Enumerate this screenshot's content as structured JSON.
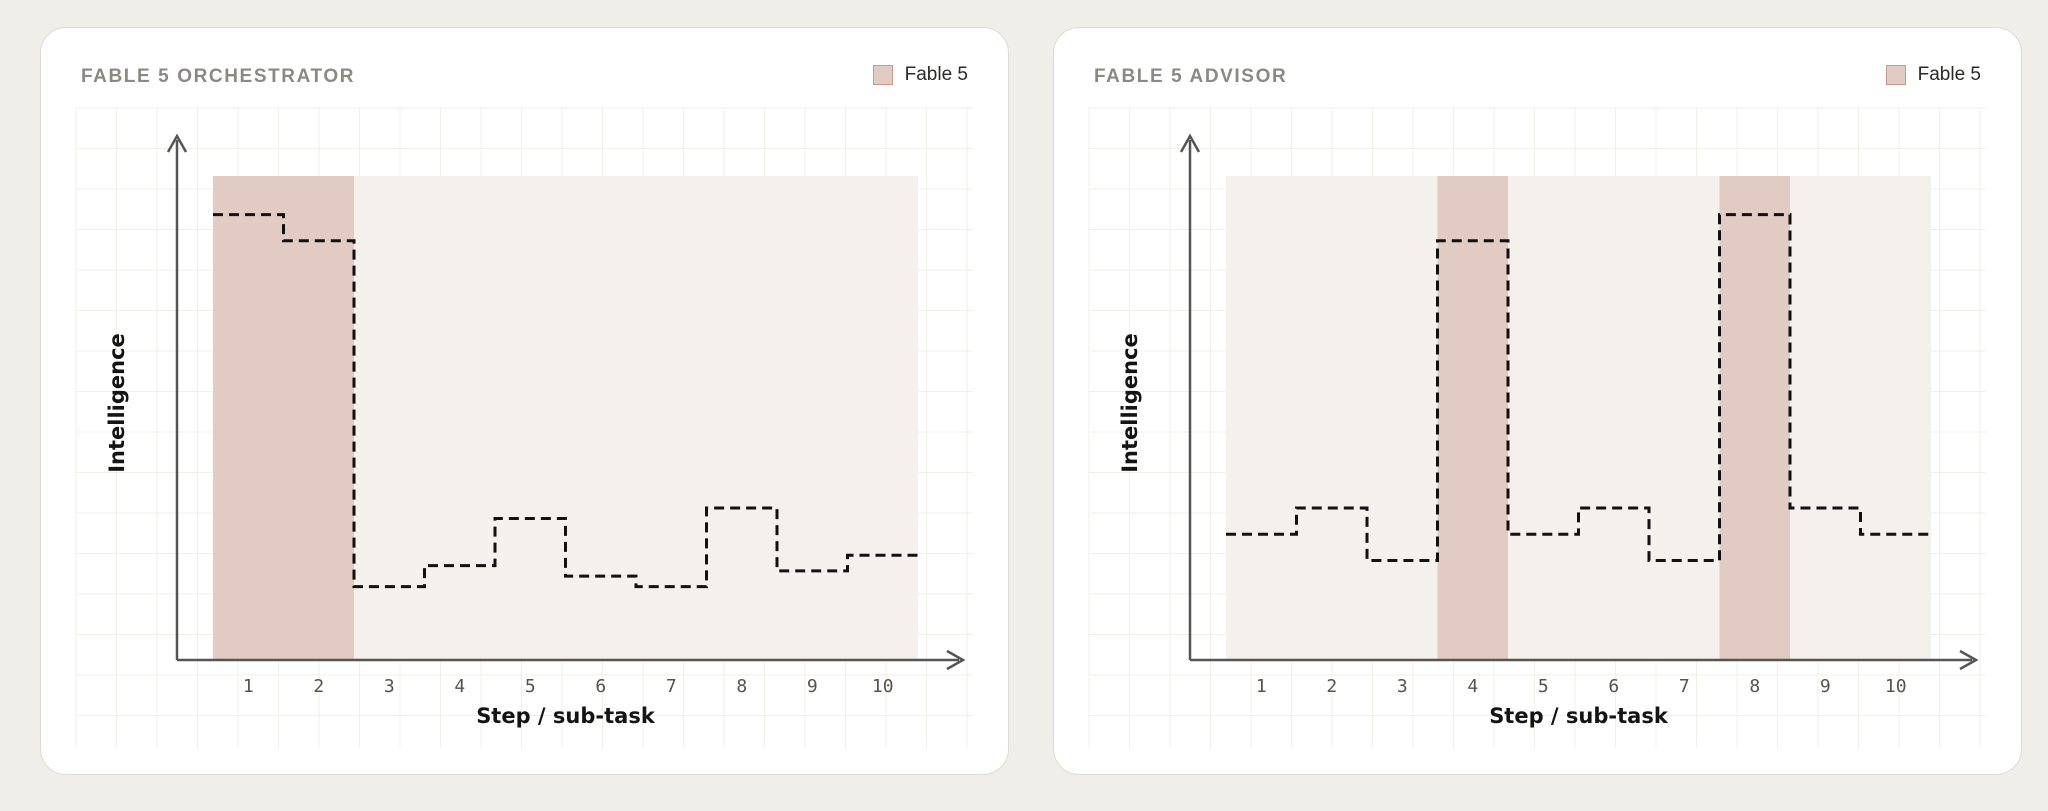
{
  "colors": {
    "background": "#efeee8",
    "card": "#ffffff",
    "highlight": "#e1cbc2",
    "base_band": "#f4f1ec",
    "grid": "#f0efea",
    "axis": "#555555",
    "line": "#111111"
  },
  "chart_data": [
    {
      "type": "line",
      "style": "step, dashed",
      "title": "FABLE 5 ORCHESTRATOR",
      "legend": {
        "label": "Fable 5",
        "position": "top-right"
      },
      "xlabel": "Step / sub-task",
      "ylabel": "Intelligence",
      "grid": true,
      "categories": [
        "1",
        "2",
        "3",
        "4",
        "5",
        "6",
        "7",
        "8",
        "9",
        "10"
      ],
      "ylim": [
        0,
        10
      ],
      "values": [
        8.5,
        8.0,
        1.4,
        1.8,
        2.7,
        1.6,
        1.4,
        2.9,
        1.7,
        2.0
      ],
      "highlighted_steps": [
        1,
        2
      ]
    },
    {
      "type": "line",
      "style": "step, dashed",
      "title": "FABLE 5 ADVISOR",
      "legend": {
        "label": "Fable 5",
        "position": "top-right"
      },
      "xlabel": "Step / sub-task",
      "ylabel": "Intelligence",
      "grid": true,
      "categories": [
        "1",
        "2",
        "3",
        "4",
        "5",
        "6",
        "7",
        "8",
        "9",
        "10"
      ],
      "ylim": [
        0,
        10
      ],
      "values": [
        2.4,
        2.9,
        1.9,
        8.0,
        2.4,
        2.9,
        1.9,
        8.5,
        2.9,
        2.4
      ],
      "highlighted_steps": [
        4,
        8
      ]
    }
  ]
}
